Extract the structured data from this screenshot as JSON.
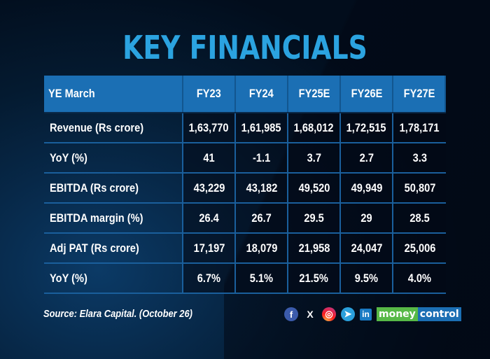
{
  "title": "KEY FINANCIALS",
  "table": {
    "header": [
      "YE March",
      "FY23",
      "FY24",
      "FY25E",
      "FY26E",
      "FY27E"
    ],
    "rows": [
      {
        "label": "Revenue (Rs crore)",
        "values": [
          "1,63,770",
          "1,61,985",
          "1,68,012",
          "1,72,515",
          "1,78,171"
        ]
      },
      {
        "label": "YoY (%)",
        "values": [
          "41",
          "-1.1",
          "3.7",
          "2.7",
          "3.3"
        ]
      },
      {
        "label": "EBITDA (Rs crore)",
        "values": [
          "43,229",
          "43,182",
          "49,520",
          "49,949",
          "50,807"
        ]
      },
      {
        "label": "EBITDA margin (%)",
        "values": [
          "26.4",
          "26.7",
          "29.5",
          "29",
          "28.5"
        ]
      },
      {
        "label": "Adj PAT (Rs crore)",
        "values": [
          "17,197",
          "18,079",
          "21,958",
          "24,047",
          "25,006"
        ]
      },
      {
        "label": "YoY (%)",
        "values": [
          "6.7%",
          "5.1%",
          "21.5%",
          "9.5%",
          "4.0%"
        ]
      }
    ]
  },
  "source": "Source: Elara Capital. (October 26)",
  "social": {
    "facebook": "f",
    "x": "X",
    "instagram": "◎",
    "telegram": "➤",
    "linkedin": "in"
  },
  "brand": {
    "part1": "money",
    "part2": "control"
  },
  "colors": {
    "title": "#2ba3e0",
    "header_bg": "#1b6fb4",
    "grid_line": "#1a5f9c",
    "brand_green": "#57b947",
    "brand_blue": "#1b6fb4"
  }
}
